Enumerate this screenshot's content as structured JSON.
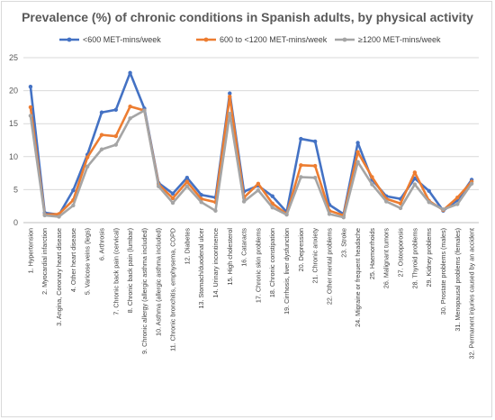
{
  "chart_data": {
    "type": "line",
    "title": "Prevalence (%) of chronic conditions in Spanish adults, by physical activity",
    "xlabel": "",
    "ylabel": "",
    "ylim": [
      0,
      25
    ],
    "yticks": [
      0,
      5,
      10,
      15,
      20,
      25
    ],
    "grid": true,
    "legend_position": "top",
    "categories": [
      "1. Hypertension",
      "2. Myocardial infarction",
      "3. Angina, Coronary heart disease",
      "4. Other heart disease",
      "5. Varicose veins (legs)",
      "6. Arthrosis",
      "7. Chronic back pain (cervical)",
      "8. Chronic back pain (lumbar)",
      "9. Chronic allergy (allergic asthma included)",
      "10. Asthma (allergic asthma included)",
      "11. Chronic bronchitis, emphysema, COPD",
      "12. Diabetes",
      "13. Stomach/duodenal ulcer",
      "14. Urinary incontinence",
      "15. High cholesterol",
      "16. Cataracts",
      "17. Chronic skin problems",
      "18. Chronic constipation",
      "19. Cirrhosis, liver dysfunction",
      "20. Depression",
      "21. Chronic anxiety",
      "22. Other mental problems",
      "23. Stroke",
      "24. Migraine or frequent headache",
      "25. Haemorrhoids",
      "26. Malignant tumors",
      "27. Osteoporosis",
      "28. Thyroid problems",
      "29. Kidney problems",
      "30. Prostate problems (males)",
      "31. Menopausal problems (females)",
      "32. Permanent injuries caused by an accident"
    ],
    "series": [
      {
        "name": "<600 MET-mins/week",
        "color": "#4472c4",
        "values": [
          20.6,
          1.5,
          1.2,
          4.9,
          10.3,
          16.7,
          17.1,
          22.7,
          17.3,
          6.0,
          4.4,
          6.8,
          4.2,
          3.8,
          19.6,
          4.7,
          5.6,
          4.0,
          1.6,
          12.7,
          12.3,
          2.7,
          1.3,
          12.1,
          6.5,
          4.0,
          3.6,
          6.7,
          4.8,
          1.8,
          3.4,
          6.5
        ]
      },
      {
        "name": "600 to <1200 MET-mins/week",
        "color": "#ed7d31",
        "values": [
          17.5,
          1.2,
          1.3,
          3.4,
          9.9,
          13.3,
          13.1,
          17.6,
          17.0,
          5.8,
          3.7,
          6.2,
          3.6,
          3.1,
          19.1,
          3.8,
          5.9,
          2.9,
          1.3,
          8.7,
          8.6,
          1.8,
          1.1,
          10.7,
          6.9,
          3.6,
          2.9,
          7.6,
          3.3,
          1.9,
          3.8,
          6.2
        ]
      },
      {
        "name": "≥1200 MET-mins/week",
        "color": "#a5a5a5",
        "values": [
          16.2,
          1.1,
          0.9,
          2.6,
          8.5,
          11.1,
          11.8,
          15.8,
          17.0,
          5.5,
          3.0,
          5.5,
          3.1,
          1.8,
          16.5,
          3.2,
          4.9,
          2.3,
          1.2,
          6.9,
          6.8,
          1.3,
          0.8,
          9.2,
          5.8,
          3.2,
          2.2,
          5.8,
          3.1,
          2.0,
          2.8,
          5.9
        ]
      }
    ]
  }
}
